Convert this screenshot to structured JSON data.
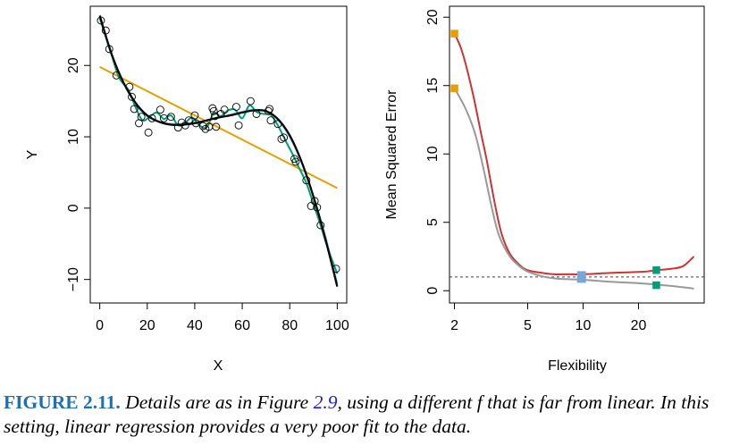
{
  "chart_data": [
    {
      "type": "scatter",
      "xlabel": "X",
      "ylabel": "Y",
      "xlim": [
        -4,
        104
      ],
      "ylim": [
        -13.3,
        28.3
      ],
      "x_ticks": [
        0,
        20,
        40,
        60,
        80,
        100
      ],
      "y_ticks": [
        -10,
        0,
        10,
        20
      ],
      "colors": {
        "points": "#000000",
        "true_f": "#000000",
        "linear": "#e69f00",
        "spline_smooth": "#56b4e9",
        "spline_wiggly": "#009e73"
      },
      "points": [
        [
          0.5,
          26.3
        ],
        [
          2.5,
          24.9
        ],
        [
          4,
          22.3
        ],
        [
          7,
          18.6
        ],
        [
          12.5,
          17.0
        ],
        [
          13.5,
          15.6
        ],
        [
          14.5,
          13.9
        ],
        [
          16.5,
          11.9
        ],
        [
          17.5,
          12.8
        ],
        [
          20.5,
          10.6
        ],
        [
          22,
          12.6
        ],
        [
          25.5,
          13.8
        ],
        [
          27,
          12.6
        ],
        [
          30,
          12.8
        ],
        [
          33,
          11.3
        ],
        [
          34.5,
          12.0
        ],
        [
          36,
          11.6
        ],
        [
          37.5,
          12.3
        ],
        [
          40,
          13.0
        ],
        [
          40.5,
          11.9
        ],
        [
          43.5,
          11.5
        ],
        [
          44.5,
          11.1
        ],
        [
          46,
          11.4
        ],
        [
          47.5,
          14.0
        ],
        [
          48,
          13.6
        ],
        [
          48.5,
          12.9
        ],
        [
          49,
          11.4
        ],
        [
          51,
          13.2
        ],
        [
          52.5,
          13.8
        ],
        [
          57.5,
          14.2
        ],
        [
          58.5,
          11.6
        ],
        [
          63.5,
          15.0
        ],
        [
          66,
          13.2
        ],
        [
          71,
          13.6
        ],
        [
          71.5,
          13.9
        ],
        [
          72,
          12.3
        ],
        [
          75,
          11.8
        ],
        [
          76.5,
          9.7
        ],
        [
          77.5,
          9.9
        ],
        [
          82,
          6.9
        ],
        [
          82.5,
          6.5
        ],
        [
          87,
          3.9
        ],
        [
          89,
          0.3
        ],
        [
          90.5,
          1.0
        ],
        [
          91.5,
          0.1
        ],
        [
          93,
          -2.4
        ],
        [
          99.5,
          -8.5
        ]
      ],
      "true_f": [
        [
          0,
          27
        ],
        [
          5,
          21.6
        ],
        [
          10,
          17.6
        ],
        [
          15,
          14.8
        ],
        [
          20,
          13.0
        ],
        [
          25,
          12.1
        ],
        [
          30,
          11.7
        ],
        [
          35,
          11.7
        ],
        [
          40,
          11.9
        ],
        [
          45,
          12.3
        ],
        [
          50,
          12.7
        ],
        [
          55,
          13.0
        ],
        [
          60,
          13.4
        ],
        [
          65,
          13.7
        ],
        [
          70,
          13.6
        ],
        [
          75,
          12.5
        ],
        [
          80,
          10.2
        ],
        [
          85,
          6.5
        ],
        [
          90,
          1.6
        ],
        [
          95,
          -4.3
        ],
        [
          100,
          -11
        ]
      ],
      "linear_fit": [
        [
          0,
          19.8
        ],
        [
          100,
          2.8
        ]
      ],
      "spline_smooth": [
        [
          0,
          26.8
        ],
        [
          5,
          21.4
        ],
        [
          10,
          17.6
        ],
        [
          15,
          14.6
        ],
        [
          20,
          12.9
        ],
        [
          25,
          12.1
        ],
        [
          30,
          11.8
        ],
        [
          35,
          11.8
        ],
        [
          40,
          12.0
        ],
        [
          45,
          12.3
        ],
        [
          50,
          12.7
        ],
        [
          55,
          13.1
        ],
        [
          60,
          13.5
        ],
        [
          65,
          13.8
        ],
        [
          70,
          13.6
        ],
        [
          75,
          12.4
        ],
        [
          80,
          10.0
        ],
        [
          85,
          6.4
        ],
        [
          90,
          1.6
        ],
        [
          95,
          -4.0
        ],
        [
          100,
          -10.6
        ]
      ],
      "spline_wiggly": [
        [
          0,
          26.6
        ],
        [
          4,
          22.6
        ],
        [
          8,
          18.4
        ],
        [
          12,
          16.6
        ],
        [
          15,
          14.2
        ],
        [
          18,
          12.3
        ],
        [
          21,
          12.8
        ],
        [
          24,
          13.4
        ],
        [
          27,
          12.5
        ],
        [
          30,
          13.0
        ],
        [
          33,
          11.6
        ],
        [
          36,
          12.0
        ],
        [
          39,
          12.7
        ],
        [
          42,
          11.6
        ],
        [
          45,
          11.3
        ],
        [
          48,
          13.3
        ],
        [
          51,
          12.9
        ],
        [
          54,
          13.7
        ],
        [
          57,
          13.8
        ],
        [
          60,
          12.6
        ],
        [
          63,
          14.4
        ],
        [
          66,
          13.5
        ],
        [
          69,
          13.2
        ],
        [
          72,
          13.1
        ],
        [
          75,
          11.6
        ],
        [
          78,
          9.6
        ],
        [
          81,
          7.7
        ],
        [
          84,
          5.6
        ],
        [
          87,
          3.5
        ],
        [
          90,
          0.6
        ],
        [
          93,
          -2.4
        ],
        [
          96,
          -5.6
        ],
        [
          100,
          -9.2
        ]
      ]
    },
    {
      "type": "line",
      "xlabel": "Flexibility",
      "ylabel": "Mean Squared Error",
      "x_scale": "log",
      "xlim": [
        1.88,
        45.5
      ],
      "ylim": [
        -0.9,
        20.8
      ],
      "x_ticks": [
        2,
        5,
        10,
        20
      ],
      "y_ticks": [
        0,
        5,
        10,
        15,
        20
      ],
      "reference_line": {
        "y": 1.0,
        "style": "dashed",
        "color": "#444444"
      },
      "series": [
        {
          "role": "test",
          "color": "#cc3333",
          "points": [
            [
              2,
              18.8
            ],
            [
              2.2,
              17.5
            ],
            [
              2.5,
              14.6
            ],
            [
              2.8,
              11.4
            ],
            [
              3,
              9.5
            ],
            [
              3.3,
              6.5
            ],
            [
              3.6,
              4.2
            ],
            [
              4,
              2.7
            ],
            [
              4.5,
              1.9
            ],
            [
              5,
              1.5
            ],
            [
              6,
              1.3
            ],
            [
              7,
              1.2
            ],
            [
              8,
              1.2
            ],
            [
              10,
              1.2
            ],
            [
              14,
              1.3
            ],
            [
              18,
              1.35
            ],
            [
              22,
              1.4
            ],
            [
              25,
              1.5
            ],
            [
              30,
              1.6
            ],
            [
              35,
              1.8
            ],
            [
              40,
              2.5
            ]
          ]
        },
        {
          "role": "training",
          "color": "#999999",
          "points": [
            [
              2,
              14.8
            ],
            [
              2.3,
              13.3
            ],
            [
              2.6,
              11.4
            ],
            [
              2.9,
              8.7
            ],
            [
              3.2,
              6.0
            ],
            [
              3.5,
              4.0
            ],
            [
              4,
              2.5
            ],
            [
              4.5,
              1.8
            ],
            [
              5,
              1.4
            ],
            [
              6,
              1.05
            ],
            [
              7,
              0.9
            ],
            [
              8,
              0.85
            ],
            [
              10,
              0.8
            ],
            [
              14,
              0.65
            ],
            [
              20,
              0.55
            ],
            [
              25,
              0.45
            ],
            [
              30,
              0.35
            ],
            [
              35,
              0.25
            ],
            [
              40,
              0.15
            ]
          ]
        }
      ],
      "markers": [
        {
          "x": 2,
          "y": 18.8,
          "color": "#e69f00"
        },
        {
          "x": 2,
          "y": 14.8,
          "color": "#e69f00"
        },
        {
          "x": 9.8,
          "y": 1.0,
          "color": "#7aa6d6",
          "size": "large"
        },
        {
          "x": 25,
          "y": 1.5,
          "color": "#009e73"
        },
        {
          "x": 25,
          "y": 0.4,
          "color": "#009e73"
        }
      ]
    }
  ],
  "caption": {
    "label": "FIGURE 2.11.",
    "part1": "Details are as in Figure",
    "ref": "2.9",
    "part2": ", using a different",
    "symbol": "f",
    "part3": "that is far from linear. In this setting, linear regression provides a very poor fit to the data."
  }
}
